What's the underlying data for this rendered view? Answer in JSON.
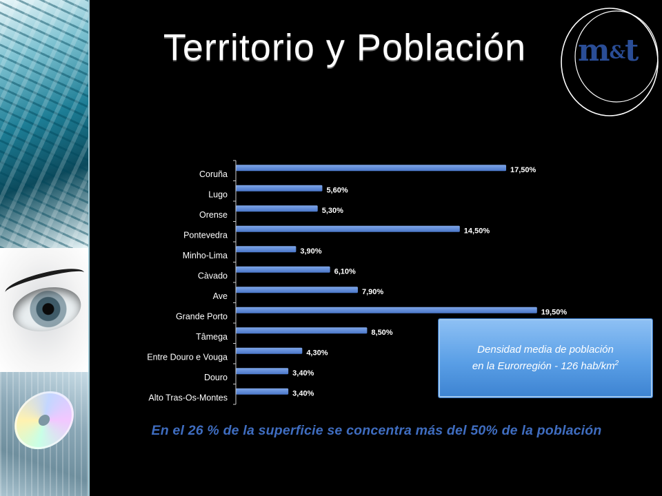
{
  "slide": {
    "title": "Territorio y Población",
    "logo": {
      "left": "m",
      "amp": "&",
      "right": "t"
    },
    "callout": {
      "line1": "Densidad media de población",
      "line2": "en la Eurorregión - 126 hab/km",
      "sup": "2"
    },
    "note": "En el 26 % de la superficie se concentra más del 50% de la población"
  },
  "chart_data": {
    "type": "bar",
    "orientation": "horizontal",
    "categories": [
      "Coruña",
      "Lugo",
      "Orense",
      "Pontevedra",
      "Minho-Lima",
      "Càvado",
      "Ave",
      "Grande Porto",
      "Tâmega",
      "Entre Douro e Vouga",
      "Douro",
      "Alto Tras-Os-Montes"
    ],
    "values": [
      17.5,
      5.6,
      5.3,
      14.5,
      3.9,
      6.1,
      7.9,
      19.5,
      8.5,
      4.3,
      3.4,
      3.4
    ],
    "value_labels": [
      "17,50%",
      "5,60%",
      "5,30%",
      "14,50%",
      "3,90%",
      "6,10%",
      "7,90%",
      "19,50%",
      "8,50%",
      "4,30%",
      "3,40%",
      "3,40%"
    ],
    "xlim": [
      0,
      20
    ],
    "grid": false,
    "colors": {
      "bar": "#4a76c8",
      "bar_top": "#7ea6e8",
      "axis": "#cfcfcf",
      "label": "#ffffff"
    }
  }
}
